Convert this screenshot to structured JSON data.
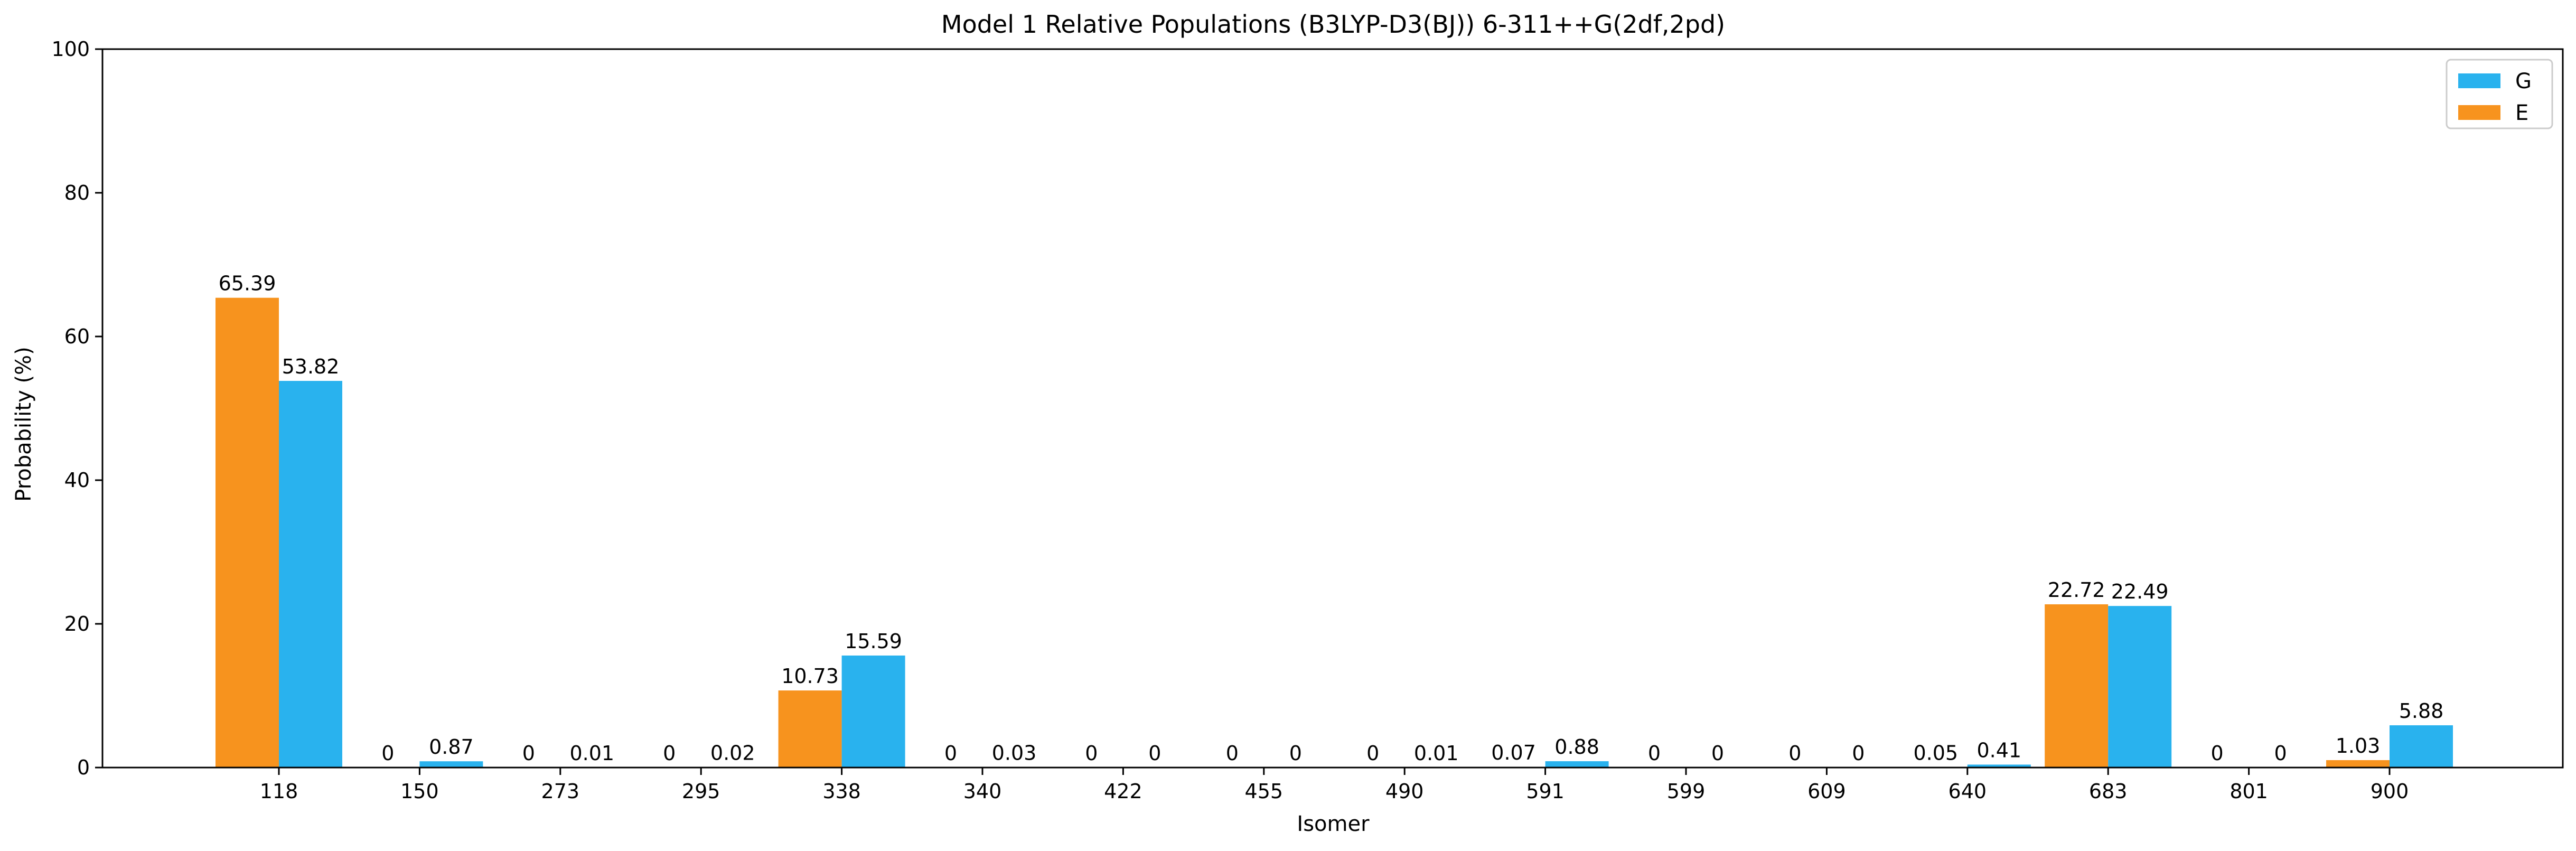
{
  "chart_data": {
    "type": "bar",
    "title": "Model 1 Relative Populations (B3LYP-D3(BJ)) 6-311++G(2df,2pd)",
    "xlabel": "Isomer",
    "ylabel": "Probability (%)",
    "ylim": [
      0,
      100
    ],
    "yticks": [
      "0",
      "20",
      "40",
      "60",
      "80",
      "100"
    ],
    "legend_position": "top-right",
    "grid": false,
    "categories": [
      "118",
      "150",
      "273",
      "295",
      "338",
      "340",
      "422",
      "455",
      "490",
      "591",
      "599",
      "609",
      "640",
      "683",
      "801",
      "900"
    ],
    "series": [
      {
        "name": "E",
        "color": "#f7931e",
        "values": [
          65.39,
          0,
          0,
          0,
          10.73,
          0,
          0,
          0,
          0,
          0.07,
          0,
          0,
          0.05,
          22.72,
          0,
          1.03
        ],
        "labels": [
          "65.39",
          "0",
          "0",
          "0",
          "10.73",
          "0",
          "0",
          "0",
          "0",
          "0.07",
          "0",
          "0",
          "0.05",
          "22.72",
          "0",
          "1.03"
        ]
      },
      {
        "name": "G",
        "color": "#29b2ee",
        "values": [
          53.82,
          0.87,
          0.01,
          0.02,
          15.59,
          0.03,
          0,
          0,
          0.01,
          0.88,
          0,
          0,
          0.41,
          22.49,
          0,
          5.88
        ],
        "labels": [
          "53.82",
          "0.87",
          "0.01",
          "0.02",
          "15.59",
          "0.03",
          "0",
          "0",
          "0.01",
          "0.88",
          "0",
          "0",
          "0.41",
          "22.49",
          "0",
          "5.88"
        ]
      }
    ],
    "legend_order": [
      "G",
      "E"
    ]
  }
}
